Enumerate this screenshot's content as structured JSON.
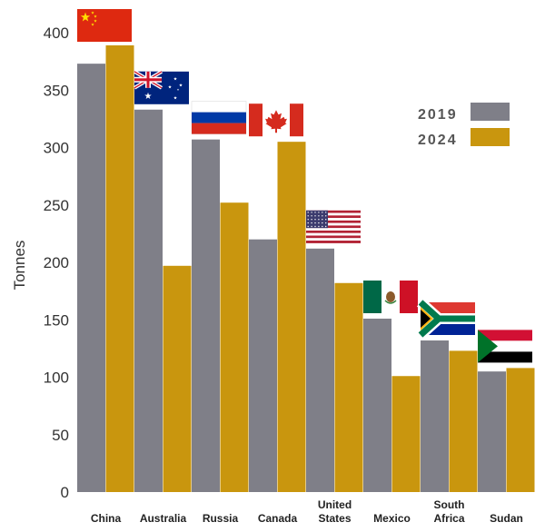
{
  "chart_data": {
    "type": "bar",
    "ylabel": "Tonnes",
    "ylim": [
      0,
      400
    ],
    "yticks": [
      0,
      50,
      100,
      150,
      200,
      250,
      300,
      350,
      400
    ],
    "categories": [
      {
        "lines": [
          "China"
        ],
        "flag": "china-flag"
      },
      {
        "lines": [
          "Australia"
        ],
        "flag": "australia-flag"
      },
      {
        "lines": [
          "Russia"
        ],
        "flag": "russia-flag"
      },
      {
        "lines": [
          "Canada"
        ],
        "flag": "canada-flag"
      },
      {
        "lines": [
          "United",
          "States"
        ],
        "flag": "united-states-flag"
      },
      {
        "lines": [
          "Mexico"
        ],
        "flag": "mexico-flag"
      },
      {
        "lines": [
          "South",
          "Africa"
        ],
        "flag": "south-africa-flag"
      },
      {
        "lines": [
          "Sudan"
        ],
        "flag": "sudan-flag"
      }
    ],
    "series": [
      {
        "name": "2019",
        "color": "#7f7f88",
        "values": [
          373,
          333,
          307,
          220,
          212,
          151,
          132,
          105
        ]
      },
      {
        "name": "2024",
        "color": "#c9960e",
        "values": [
          389,
          197,
          252,
          305,
          182,
          101,
          123,
          108
        ]
      }
    ],
    "legend_position": "top-right",
    "grid": false
  }
}
